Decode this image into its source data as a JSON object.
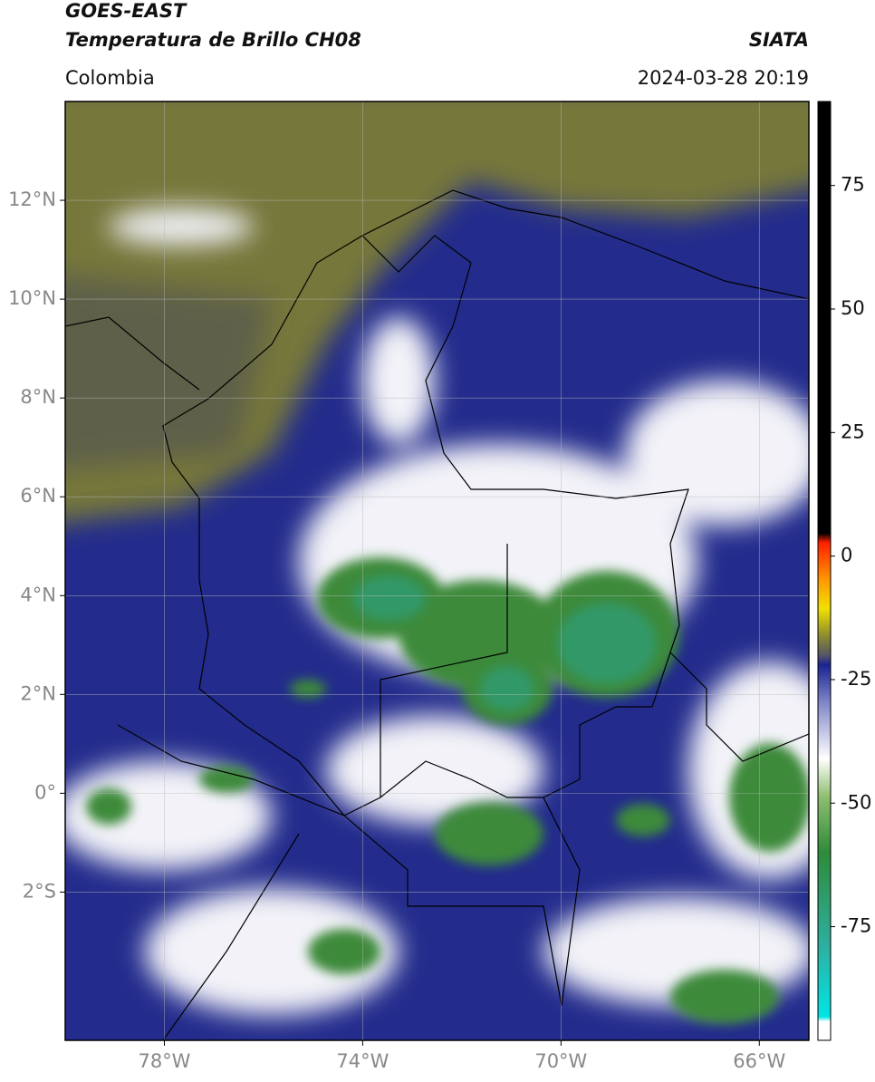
{
  "header": {
    "title": "GOES-EAST",
    "subtitle": "Temperatura de Brillo CH08",
    "source": "SIATA",
    "region": "Colombia",
    "timestamp": "2024-03-28 20:19"
  },
  "map": {
    "lonlim": [
      -80,
      -65
    ],
    "latlim": [
      -5,
      14
    ],
    "xticks": [
      {
        "value": -78,
        "label": "78°W"
      },
      {
        "value": -74,
        "label": "74°W"
      },
      {
        "value": -70,
        "label": "70°W"
      },
      {
        "value": -66,
        "label": "66°W"
      }
    ],
    "yticks": [
      {
        "value": 12,
        "label": "12°N"
      },
      {
        "value": 10,
        "label": "10°N"
      },
      {
        "value": 8,
        "label": "8°N"
      },
      {
        "value": 6,
        "label": "6°N"
      },
      {
        "value": 4,
        "label": "4°N"
      },
      {
        "value": 2,
        "label": "2°N"
      },
      {
        "value": 0,
        "label": "0°"
      },
      {
        "value": -2,
        "label": "2°S"
      }
    ],
    "grid": true
  },
  "colorbar": {
    "lim": [
      -98,
      92
    ],
    "ticks": [
      75,
      50,
      25,
      0,
      -25,
      -50,
      -75
    ]
  }
}
